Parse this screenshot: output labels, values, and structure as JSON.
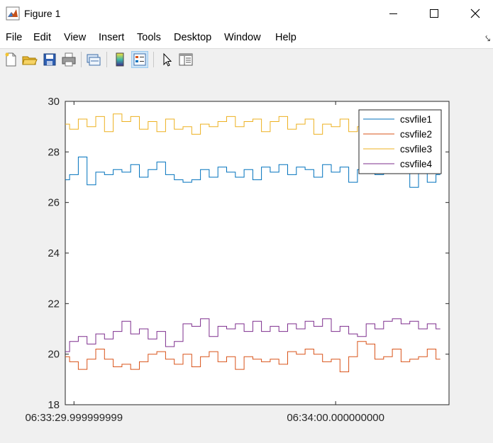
{
  "window": {
    "title": "Figure 1"
  },
  "menu": {
    "items": [
      "File",
      "Edit",
      "View",
      "Insert",
      "Tools",
      "Desktop",
      "Window",
      "Help"
    ]
  },
  "toolbar": {
    "icons": [
      "new-figure-icon",
      "open-file-icon",
      "save-icon",
      "print-icon",
      "link-plot-icon",
      "colorbar-icon",
      "legend-icon",
      "edit-plot-icon",
      "property-inspector-icon"
    ]
  },
  "colors": {
    "csvfile1": "#0072bd",
    "csvfile2": "#d95319",
    "csvfile3": "#edb120",
    "csvfile4": "#7e2f8e"
  },
  "chart_data": {
    "type": "line",
    "title": "",
    "xlabel": "",
    "ylabel": "",
    "x_tick_labels": [
      "06:33:29.999999999",
      "06:34:00.000000000"
    ],
    "x_ticks_seconds": [
      0,
      30
    ],
    "xlim_seconds": [
      -1,
      43
    ],
    "ylim": [
      18,
      30
    ],
    "y_ticks": [
      30,
      28,
      26,
      24,
      22,
      20,
      18
    ],
    "grid": false,
    "legend_location": "top-right",
    "series": [
      {
        "name": "csvfile1",
        "x_seconds": [
          -1,
          0,
          1,
          2,
          3,
          4,
          5,
          6,
          7,
          8,
          9,
          10,
          11,
          12,
          13,
          14,
          15,
          16,
          17,
          18,
          19,
          20,
          21,
          22,
          23,
          24,
          25,
          26,
          27,
          28,
          29,
          30,
          31,
          32,
          33,
          34,
          35,
          36,
          37,
          38,
          39,
          40,
          41,
          42
        ],
        "values": [
          26.9,
          27.1,
          27.8,
          26.7,
          27.2,
          27.1,
          27.3,
          27.2,
          27.5,
          27.0,
          27.3,
          27.6,
          27.1,
          26.9,
          26.8,
          26.9,
          27.3,
          27.0,
          27.4,
          27.2,
          27.0,
          27.3,
          26.9,
          27.4,
          27.2,
          27.5,
          27.1,
          27.4,
          27.3,
          27.0,
          27.5,
          27.2,
          27.4,
          26.8,
          27.3,
          27.5,
          27.1,
          27.4,
          27.2,
          27.3,
          26.6,
          27.2,
          26.8,
          27.1
        ]
      },
      {
        "name": "csvfile2",
        "x_seconds": [
          -1,
          0,
          1,
          2,
          3,
          4,
          5,
          6,
          7,
          8,
          9,
          10,
          11,
          12,
          13,
          14,
          15,
          16,
          17,
          18,
          19,
          20,
          21,
          22,
          23,
          24,
          25,
          26,
          27,
          28,
          29,
          30,
          31,
          32,
          33,
          34,
          35,
          36,
          37,
          38,
          39,
          40,
          41,
          42
        ],
        "values": [
          19.9,
          19.7,
          19.4,
          19.8,
          20.2,
          19.8,
          19.5,
          19.6,
          19.4,
          19.7,
          20.0,
          20.1,
          19.8,
          19.6,
          20.0,
          19.5,
          19.9,
          20.1,
          19.7,
          19.9,
          19.4,
          19.9,
          19.8,
          19.7,
          19.8,
          19.6,
          20.1,
          20.0,
          20.2,
          20.0,
          19.7,
          19.8,
          19.3,
          19.9,
          20.5,
          20.4,
          19.8,
          19.9,
          20.2,
          19.7,
          19.8,
          19.9,
          20.2,
          19.8
        ]
      },
      {
        "name": "csvfile3",
        "x_seconds": [
          -1,
          0,
          1,
          2,
          3,
          4,
          5,
          6,
          7,
          8,
          9,
          10,
          11,
          12,
          13,
          14,
          15,
          16,
          17,
          18,
          19,
          20,
          21,
          22,
          23,
          24,
          25,
          26,
          27,
          28,
          29,
          30,
          31,
          32,
          33,
          34,
          35,
          36,
          37,
          38,
          39,
          40,
          41,
          42
        ],
        "values": [
          29.1,
          28.9,
          29.3,
          29.0,
          29.4,
          28.8,
          29.5,
          29.2,
          29.4,
          28.9,
          29.2,
          28.8,
          29.3,
          28.9,
          29.0,
          28.7,
          29.1,
          29.0,
          29.2,
          29.4,
          29.0,
          29.2,
          29.3,
          28.8,
          29.2,
          29.4,
          28.9,
          29.1,
          29.3,
          28.7,
          29.1,
          29.0,
          29.3,
          28.8,
          29.0,
          29.2,
          29.1,
          28.9,
          29.2,
          29.0,
          29.1,
          29.2,
          29.0,
          29.1
        ]
      },
      {
        "name": "csvfile4",
        "x_seconds": [
          -1,
          0,
          1,
          2,
          3,
          4,
          5,
          6,
          7,
          8,
          9,
          10,
          11,
          12,
          13,
          14,
          15,
          16,
          17,
          18,
          19,
          20,
          21,
          22,
          23,
          24,
          25,
          26,
          27,
          28,
          29,
          30,
          31,
          32,
          33,
          34,
          35,
          36,
          37,
          38,
          39,
          40,
          41,
          42
        ],
        "values": [
          20.1,
          20.5,
          20.7,
          20.4,
          20.8,
          20.6,
          20.9,
          21.3,
          20.8,
          21.0,
          20.6,
          20.9,
          20.3,
          20.5,
          21.2,
          21.1,
          21.4,
          20.7,
          21.1,
          21.0,
          21.2,
          20.9,
          21.3,
          20.9,
          21.1,
          20.9,
          21.2,
          21.0,
          21.3,
          21.1,
          21.4,
          20.9,
          21.1,
          20.8,
          20.7,
          21.2,
          21.0,
          21.3,
          21.4,
          21.2,
          21.3,
          21.0,
          21.2,
          21.0
        ]
      }
    ]
  }
}
